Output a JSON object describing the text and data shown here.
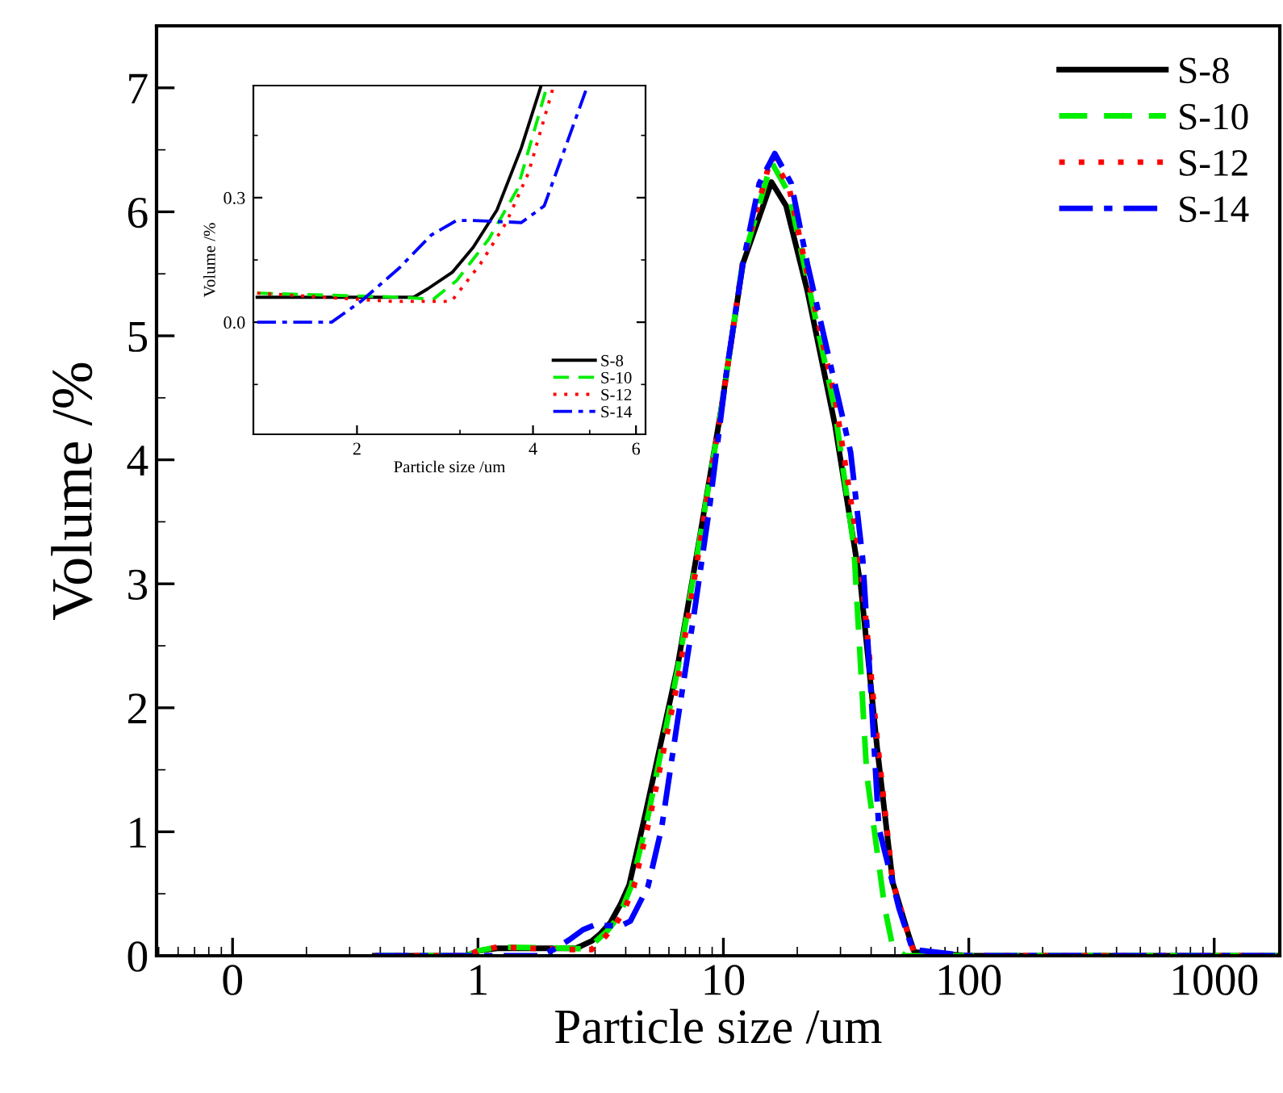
{
  "chart_data": [
    {
      "type": "line",
      "xlabel": "Particle size /um",
      "ylabel": "Volume /%",
      "log": "x",
      "xlim": [
        0.049,
        1850
      ],
      "ylim": [
        0,
        7.5
      ],
      "xticks": [
        {
          "value": 0.1,
          "label": "0"
        },
        1,
        10,
        100,
        1000
      ],
      "yticks": [
        0,
        1,
        2,
        3,
        4,
        5,
        6,
        7
      ],
      "grid": false,
      "legend": "top right",
      "series": [
        {
          "name": "S-8",
          "color": "#000000",
          "line_style": "solid",
          "x": [
            0.38,
            0.9,
            1.0,
            1.2,
            2.5,
            2.64,
            2.91,
            3.16,
            3.47,
            3.82,
            4.13,
            4.83,
            6.5,
            8.0,
            9.8,
            12.0,
            15.7,
            18.0,
            22,
            28.5,
            36.3,
            42.3,
            49,
            57,
            60,
            100,
            1800
          ],
          "values": [
            0,
            0,
            0.04,
            0.06,
            0.06,
            0.08,
            0.12,
            0.18,
            0.27,
            0.42,
            0.57,
            1.16,
            2.33,
            3.37,
            4.41,
            5.58,
            6.24,
            6.05,
            5.36,
            4.28,
            2.98,
            1.68,
            0.59,
            0.16,
            0.03,
            0,
            0
          ]
        },
        {
          "name": "S-10",
          "color": "#00ee00",
          "line_style": "dashed",
          "x": [
            0.38,
            0.9,
            1.0,
            1.2,
            2.4,
            2.7,
            2.96,
            3.36,
            3.76,
            4.21,
            4.9,
            6.5,
            8.0,
            9.8,
            12.0,
            15.7,
            18.5,
            22,
            28.5,
            34,
            38.4,
            45.5,
            49,
            55,
            100,
            1800
          ],
          "values": [
            0,
            0,
            0.04,
            0.07,
            0.06,
            0.055,
            0.1,
            0.2,
            0.32,
            0.56,
            1.1,
            2.3,
            3.35,
            4.4,
            5.6,
            6.4,
            6.15,
            5.45,
            4.4,
            3.3,
            1.46,
            0.38,
            0.07,
            0,
            0,
            0
          ]
        },
        {
          "name": "S-12",
          "color": "#ff0000",
          "line_style": "dotted",
          "x": [
            0.38,
            0.9,
            1.0,
            1.2,
            2.3,
            2.9,
            3.25,
            3.6,
            3.93,
            4.32,
            5.0,
            6.5,
            8.0,
            9.8,
            12.0,
            15.7,
            18.5,
            22,
            28.5,
            36.3,
            42.3,
            49,
            57,
            60,
            100,
            1800
          ],
          "values": [
            0,
            0,
            0.04,
            0.07,
            0.05,
            0.05,
            0.14,
            0.24,
            0.36,
            0.56,
            1.1,
            2.2,
            3.3,
            4.4,
            5.6,
            6.45,
            6.2,
            5.5,
            4.5,
            3.15,
            1.75,
            0.6,
            0.15,
            0.02,
            0,
            0
          ]
        },
        {
          "name": "S-14",
          "color": "#0000ff",
          "line_style": "dashdot",
          "x": [
            0.38,
            1.81,
            2.03,
            2.36,
            2.68,
            2.96,
            3.16,
            3.82,
            4.18,
            4.54,
            4.93,
            5.6,
            6.5,
            7.6,
            8.8,
            10.3,
            12,
            14,
            16.2,
            18.9,
            22,
            26.8,
            33,
            37,
            40,
            43,
            52,
            59,
            100,
            1800
          ],
          "values": [
            0,
            0,
            0.05,
            0.13,
            0.21,
            0.245,
            0.245,
            0.24,
            0.28,
            0.42,
            0.56,
            1.03,
            1.89,
            2.76,
            3.63,
            4.71,
            5.58,
            6.23,
            6.47,
            6.23,
            5.58,
            4.84,
            4.06,
            3.19,
            2.1,
            1.03,
            0.38,
            0.05,
            0,
            0
          ]
        }
      ]
    },
    {
      "type": "line",
      "xlabel": "Particle size /um",
      "ylabel": "Volume /%",
      "log": "x",
      "xlim": [
        1.33,
        6.23
      ],
      "ylim": [
        -0.27,
        0.57
      ],
      "xticks": [
        2,
        4,
        6
      ],
      "yticks": [
        {
          "value": 0,
          "label": "0.0"
        },
        0.3
      ],
      "grid": false,
      "legend": "bottom right",
      "series": [
        {
          "name": "S-8",
          "color": "#000000",
          "line_style": "solid",
          "x": [
            1.35,
            2.5,
            2.64,
            2.91,
            3.16,
            3.47,
            3.82,
            4.13
          ],
          "values": [
            0.06,
            0.06,
            0.08,
            0.12,
            0.18,
            0.27,
            0.42,
            0.57
          ]
        },
        {
          "name": "S-10",
          "color": "#00ee00",
          "line_style": "dashed",
          "x": [
            1.35,
            2.4,
            2.7,
            2.96,
            3.36,
            3.76,
            4.21
          ],
          "values": [
            0.07,
            0.06,
            0.055,
            0.1,
            0.2,
            0.32,
            0.56
          ]
        },
        {
          "name": "S-12",
          "color": "#ff0000",
          "line_style": "dotted",
          "x": [
            1.35,
            2.3,
            2.9,
            3.25,
            3.6,
            3.93,
            4.32
          ],
          "values": [
            0.07,
            0.05,
            0.05,
            0.14,
            0.24,
            0.36,
            0.56
          ]
        },
        {
          "name": "S-14",
          "color": "#0000ff",
          "line_style": "dashdot",
          "x": [
            1.35,
            1.81,
            2.03,
            2.36,
            2.68,
            2.96,
            3.16,
            3.82,
            4.18,
            4.54,
            4.93
          ],
          "values": [
            0,
            0,
            0.05,
            0.13,
            0.21,
            0.245,
            0.245,
            0.24,
            0.28,
            0.42,
            0.56
          ]
        }
      ]
    }
  ]
}
